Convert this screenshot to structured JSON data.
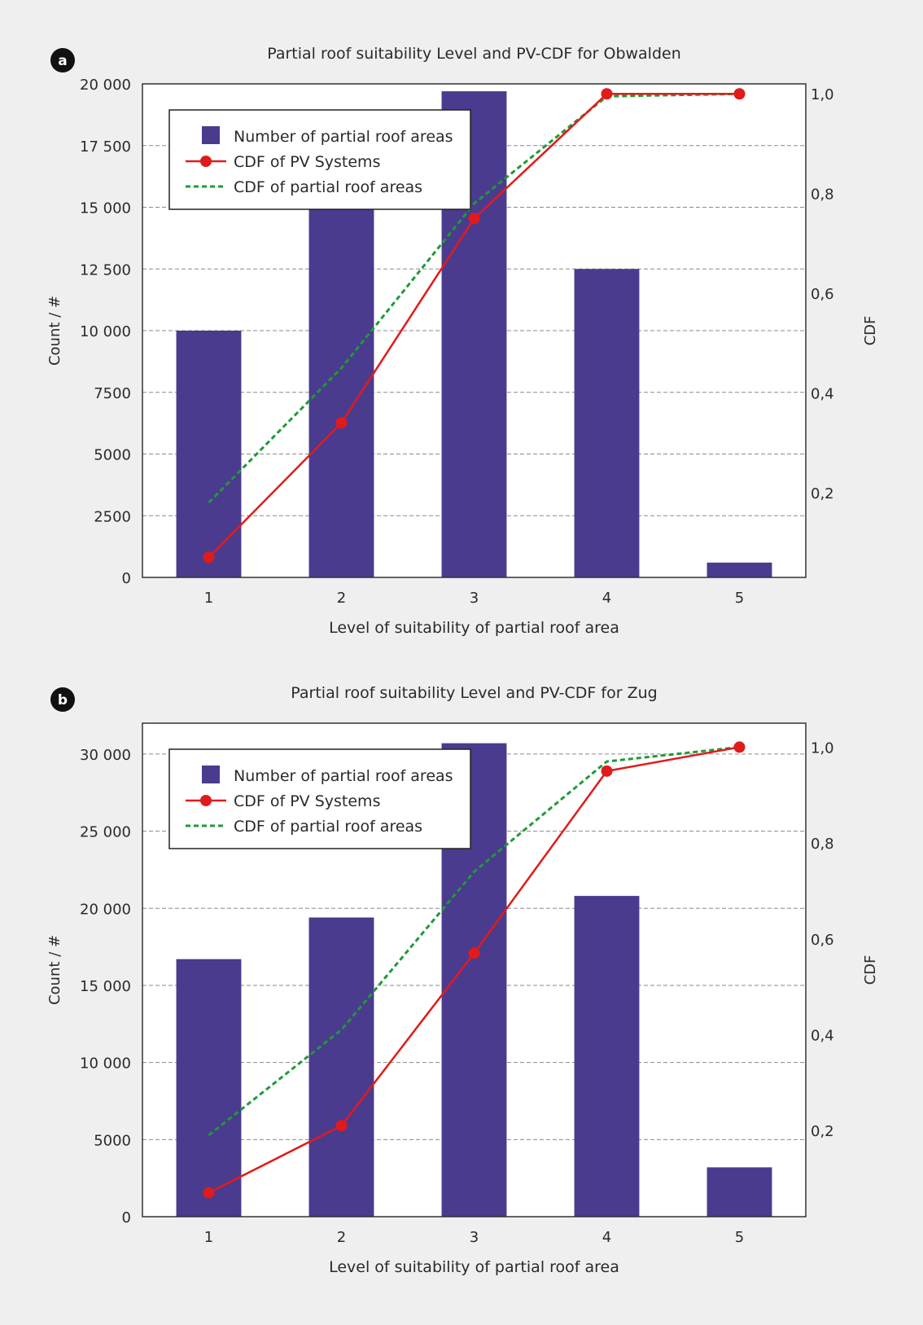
{
  "colors": {
    "page_background": "#efefef",
    "bar": "#4a3b8f",
    "pv_line": "#e01b1b",
    "roof_line": "#1f9a36",
    "grid": "#8a8a8a",
    "text": "#2a2a2a"
  },
  "chart_data": [
    {
      "panel_label": "a",
      "type": "bar",
      "title": "Partial roof suitability Level and PV-CDF for Obwalden",
      "xlabel": "Level of suitability of partial roof area",
      "ylabel": "Count / #",
      "y2label": "CDF",
      "categories": [
        "1",
        "2",
        "3",
        "4",
        "5"
      ],
      "ylim": [
        0,
        20000
      ],
      "yticks": [
        0,
        2500,
        5000,
        7500,
        10000,
        12500,
        15000,
        17500,
        20000
      ],
      "ytick_labels": [
        "0",
        "2500",
        "5000",
        "7500",
        "10 000",
        "12 500",
        "15 000",
        "17 500",
        "20 000"
      ],
      "y2lim": [
        0.03,
        1.02
      ],
      "y2ticks": [
        0.2,
        0.4,
        0.6,
        0.8,
        1.0
      ],
      "y2tick_labels": [
        "0,2",
        "0,4",
        "0,6",
        "0,8",
        "1,0"
      ],
      "grid": true,
      "legend_position": "top-left",
      "series": [
        {
          "name": "Number of partial roof areas",
          "type": "bar",
          "axis": "left",
          "values": [
            10000,
            15500,
            19700,
            12500,
            600
          ]
        },
        {
          "name": "CDF of PV Systems",
          "type": "line-marker",
          "axis": "right",
          "values": [
            0.07,
            0.34,
            0.75,
            1.0,
            1.0
          ]
        },
        {
          "name": "CDF of partial roof areas",
          "type": "dashed-line",
          "axis": "right",
          "values": [
            0.18,
            0.45,
            0.78,
            0.995,
            1.0
          ]
        }
      ]
    },
    {
      "panel_label": "b",
      "type": "bar",
      "title": "Partial roof suitability Level and PV-CDF for Zug",
      "xlabel": "Level of suitability of partial roof area",
      "ylabel": "Count / #",
      "y2label": "CDF",
      "categories": [
        "1",
        "2",
        "3",
        "4",
        "5"
      ],
      "ylim": [
        0,
        32000
      ],
      "yticks": [
        0,
        5000,
        10000,
        15000,
        20000,
        25000,
        30000
      ],
      "ytick_labels": [
        "0",
        "5000",
        "10 000",
        "15 000",
        "20 000",
        "25 000",
        "30 000"
      ],
      "y2lim": [
        0.02,
        1.05
      ],
      "y2ticks": [
        0.2,
        0.4,
        0.6,
        0.8,
        1.0
      ],
      "y2tick_labels": [
        "0,2",
        "0,4",
        "0,6",
        "0,8",
        "1,0"
      ],
      "grid": true,
      "legend_position": "top-left",
      "series": [
        {
          "name": "Number of partial roof areas",
          "type": "bar",
          "axis": "left",
          "values": [
            16700,
            19400,
            30700,
            20800,
            3200
          ]
        },
        {
          "name": "CDF of PV Systems",
          "type": "line-marker",
          "axis": "right",
          "values": [
            0.07,
            0.21,
            0.57,
            0.95,
            1.0
          ]
        },
        {
          "name": "CDF of partial roof areas",
          "type": "dashed-line",
          "axis": "right",
          "values": [
            0.19,
            0.41,
            0.74,
            0.97,
            1.0
          ]
        }
      ]
    }
  ]
}
